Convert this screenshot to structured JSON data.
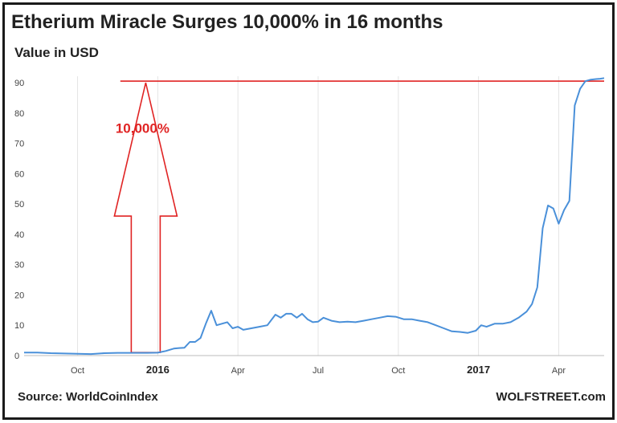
{
  "chart_data": {
    "type": "line",
    "title": "Etherium Miracle Surges 10,000% in 16 months",
    "subtitle": "Value in USD",
    "xlabel": "",
    "ylabel": "",
    "ylim": [
      0,
      90
    ],
    "y_ticks": [
      0,
      10,
      20,
      30,
      40,
      50,
      60,
      70,
      80,
      90
    ],
    "x_tick_labels": [
      "Oct",
      "2016",
      "Apr",
      "Jul",
      "Oct",
      "2017",
      "Apr"
    ],
    "x_tick_months": [
      2,
      5,
      8,
      11,
      14,
      17,
      20
    ],
    "bold_tick_labels": [
      "2016",
      "2017"
    ],
    "grid": "vertical",
    "series": [
      {
        "color": "#4a90d9",
        "x_months": [
          0,
          0.5,
          1,
          1.5,
          2,
          2.5,
          3,
          3.5,
          4,
          4.3,
          4.6,
          5,
          5.3,
          5.6,
          5.8,
          6.0,
          6.2,
          6.4,
          6.6,
          6.8,
          7.0,
          7.2,
          7.4,
          7.6,
          7.8,
          8.0,
          8.2,
          8.5,
          8.8,
          9.1,
          9.4,
          9.6,
          9.8,
          10.0,
          10.2,
          10.4,
          10.6,
          10.8,
          11.0,
          11.2,
          11.5,
          11.8,
          12.1,
          12.4,
          12.7,
          13.0,
          13.3,
          13.6,
          13.9,
          14.2,
          14.5,
          14.8,
          15.1,
          15.4,
          15.7,
          16.0,
          16.3,
          16.6,
          16.9,
          17.1,
          17.3,
          17.6,
          17.9,
          18.2,
          18.5,
          18.8,
          19.0,
          19.2,
          19.4,
          19.6,
          19.8,
          20.0,
          20.2,
          20.4,
          20.6,
          20.8,
          21.0,
          21.2,
          21.4,
          21.55,
          21.7
        ],
        "values": [
          1.0,
          1.0,
          0.8,
          0.7,
          0.6,
          0.5,
          0.8,
          0.9,
          0.9,
          0.9,
          0.9,
          0.95,
          1.5,
          2.3,
          2.5,
          2.6,
          4.5,
          4.5,
          5.8,
          10.5,
          14.8,
          10.0,
          10.5,
          11.0,
          9.0,
          9.5,
          8.5,
          9.0,
          9.5,
          10.0,
          13.5,
          12.5,
          13.8,
          13.8,
          12.5,
          13.8,
          12.0,
          11.0,
          11.2,
          12.5,
          11.5,
          11.0,
          11.2,
          11.0,
          11.5,
          12.0,
          12.5,
          13.0,
          12.8,
          12.0,
          12.0,
          11.5,
          11.0,
          10.0,
          9.0,
          8.0,
          7.8,
          7.5,
          8.2,
          10.0,
          9.5,
          10.5,
          10.5,
          11.0,
          12.5,
          14.5,
          17.0,
          22.5,
          42.0,
          49.5,
          48.5,
          43.5,
          48.0,
          51.0,
          82.5,
          88.0,
          90.5,
          91.0,
          91.2,
          91.3,
          91.5
        ]
      }
    ],
    "reference_line": {
      "value": 90.5,
      "color": "#e02424"
    },
    "annotations": [
      {
        "text": "10,000%",
        "color": "#e02424"
      }
    ],
    "source": "Source: WorldCoinIndex",
    "brand": "WOLFSTREET.com"
  }
}
